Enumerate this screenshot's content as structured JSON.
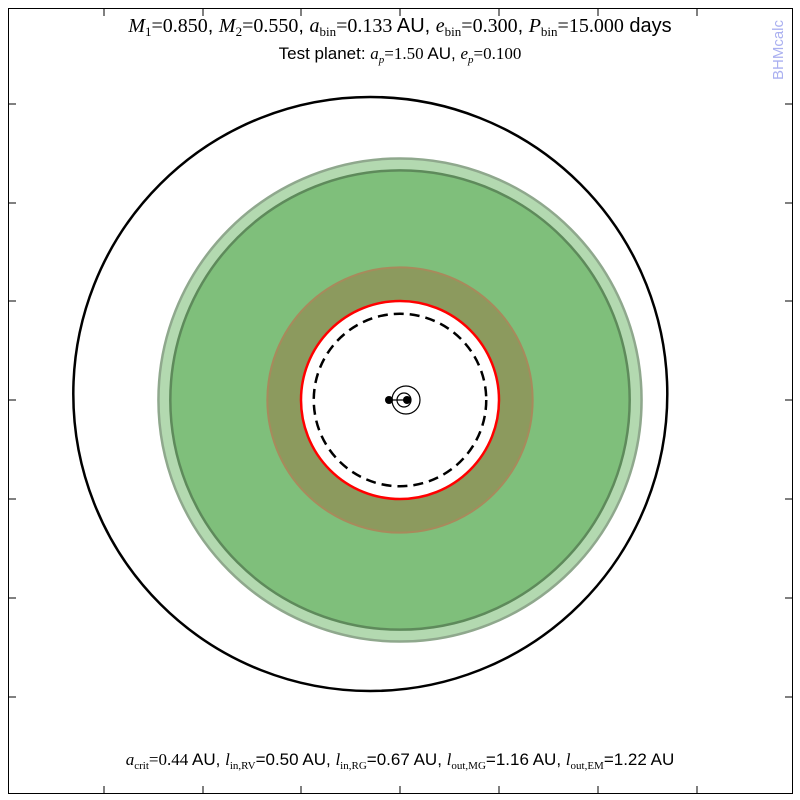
{
  "title": {
    "m1_sym": "M",
    "m1_sub": "1",
    "m1_val": "=0.850",
    "m2_sym": "M",
    "m2_sub": "2",
    "m2_val": "=0.550",
    "abin_sym": "a",
    "abin_sub": "bin",
    "abin_val": "=0.133",
    "abin_unit": " AU",
    "ebin_sym": "e",
    "ebin_sub": "bin",
    "ebin_val": "=0.300",
    "pbin_sym": "P",
    "pbin_sub": "bin",
    "pbin_val": "=15.000",
    "pbin_unit": " days"
  },
  "subtitle": {
    "prefix": "Test planet: ",
    "ap_sym": "a",
    "ap_sub": "p",
    "ap_val": "=1.50",
    "ap_unit": " AU",
    "ep_sym": "e",
    "ep_sub": "p",
    "ep_val": "=0.100"
  },
  "watermark": "BHMcalc",
  "footer": {
    "acrit_sym": "a",
    "acrit_sub": "crit",
    "acrit_val": "=0.44",
    "acrit_unit": " AU",
    "linrv_sym": "l",
    "linrv_sub": "in,RV",
    "linrv_val": "=0.50 AU",
    "linrg_sym": "l",
    "linrg_sub": "in,RG",
    "linrg_val": "=0.67 AU",
    "loutmg_sym": "l",
    "loutmg_sub": "out,MG",
    "loutmg_val": "=1.16 AU",
    "loutem_sym": "l",
    "loutem_sub": "out,EM",
    "loutem_val": "=1.22 AU"
  },
  "diagram": {
    "binary_semimajor_au": 0.133,
    "binary_eccentricity": 0.3,
    "mass_1": 0.85,
    "mass_2": 0.55,
    "planet_semimajor_au": 1.5,
    "planet_eccentricity": 0.1,
    "critical_distance_au": 0.44,
    "zones": {
      "inner_recent_venus_au": 0.5,
      "inner_runaway_greenhouse_au": 0.67,
      "outer_maximum_greenhouse_au": 1.16,
      "outer_early_mars_au": 1.22
    },
    "colors": {
      "planet_orbit": "#000000",
      "habitable_zone": "#7fbf7b",
      "habitable_zone_optimistic": "#b3d9b0",
      "runaway_band": "#8c9a5e",
      "critical_line": "#ff0000",
      "dashed_line": "#000000"
    }
  }
}
